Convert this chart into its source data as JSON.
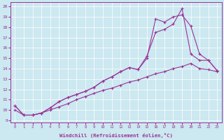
{
  "xlabel": "Windchill (Refroidissement éolien,°C)",
  "bg_color": "#cce8f0",
  "line_color": "#993399",
  "xlim": [
    -0.5,
    23.5
  ],
  "ylim": [
    8.8,
    20.4
  ],
  "xticks": [
    0,
    1,
    2,
    3,
    4,
    5,
    6,
    7,
    8,
    9,
    10,
    11,
    12,
    13,
    14,
    15,
    16,
    17,
    18,
    19,
    20,
    21,
    22,
    23
  ],
  "yticks": [
    9,
    10,
    11,
    12,
    13,
    14,
    15,
    16,
    17,
    18,
    19,
    20
  ],
  "series1_x": [
    0,
    1,
    2,
    3,
    4,
    5,
    6,
    7,
    8,
    9,
    10,
    11,
    12,
    13,
    14,
    15,
    16,
    17,
    18,
    19,
    20,
    21,
    22,
    23
  ],
  "series1_y": [
    10.4,
    9.5,
    9.5,
    9.7,
    10.2,
    10.8,
    11.2,
    11.5,
    11.8,
    12.2,
    12.8,
    13.2,
    13.7,
    14.1,
    13.9,
    15.0,
    18.8,
    18.5,
    19.0,
    19.2,
    18.1,
    15.4,
    14.8,
    13.8
  ],
  "series2_x": [
    0,
    1,
    2,
    3,
    4,
    5,
    6,
    7,
    8,
    9,
    10,
    11,
    12,
    13,
    14,
    15,
    16,
    17,
    18,
    19,
    20,
    21,
    22,
    23
  ],
  "series2_y": [
    10.4,
    9.5,
    9.5,
    9.7,
    10.2,
    10.8,
    11.2,
    11.5,
    11.8,
    12.2,
    12.8,
    13.2,
    13.7,
    14.1,
    13.9,
    15.2,
    17.5,
    17.8,
    18.3,
    19.8,
    15.4,
    14.8,
    14.8,
    13.8
  ],
  "series3_x": [
    0,
    1,
    2,
    3,
    4,
    5,
    6,
    7,
    8,
    9,
    10,
    11,
    12,
    13,
    14,
    15,
    16,
    17,
    18,
    19,
    20,
    21,
    22,
    23
  ],
  "series3_y": [
    10.0,
    9.5,
    9.5,
    9.7,
    10.0,
    10.3,
    10.6,
    11.0,
    11.3,
    11.6,
    11.9,
    12.1,
    12.4,
    12.7,
    12.9,
    13.2,
    13.5,
    13.7,
    14.0,
    14.2,
    14.5,
    14.0,
    13.9,
    13.7
  ]
}
